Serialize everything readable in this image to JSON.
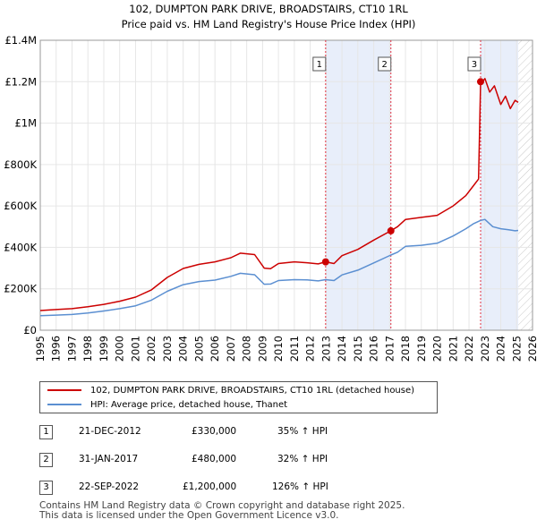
{
  "header": {
    "title": "102, DUMPTON PARK DRIVE, BROADSTAIRS, CT10 1RL",
    "subtitle": "Price paid vs. HM Land Registry's House Price Index (HPI)"
  },
  "chart_data": {
    "type": "line",
    "title": "102, DUMPTON PARK DRIVE, BROADSTAIRS, CT10 1RL",
    "subtitle": "Price paid vs. HM Land Registry's House Price Index (HPI)",
    "xlim": [
      1995,
      2026
    ],
    "ylim": [
      0,
      1400000
    ],
    "x_ticks": [
      1995,
      1996,
      1997,
      1998,
      1999,
      2000,
      2001,
      2002,
      2003,
      2004,
      2005,
      2006,
      2007,
      2008,
      2009,
      2010,
      2011,
      2012,
      2013,
      2014,
      2015,
      2016,
      2017,
      2018,
      2019,
      2020,
      2021,
      2022,
      2023,
      2024,
      2025,
      2026
    ],
    "y_ticks": [
      0,
      200000,
      400000,
      600000,
      800000,
      1000000,
      1200000,
      1400000
    ],
    "y_tick_labels": [
      "£0",
      "£200K",
      "£400K",
      "£600K",
      "£800K",
      "£1M",
      "£1.2M",
      "£1.4M"
    ],
    "grid": true,
    "colors": {
      "property": "#cc0000",
      "hpi": "#5b8fd1",
      "shade": "#e8eefa",
      "marker_line": "#e03040"
    },
    "series": [
      {
        "name": "102, DUMPTON PARK DRIVE, BROADSTAIRS, CT10 1RL (detached house)",
        "x": [
          1995.0,
          1996.0,
          1997.0,
          1998.0,
          1999.0,
          2000.0,
          2001.0,
          2002.0,
          2003.0,
          2004.0,
          2005.0,
          2006.0,
          2007.0,
          2007.6,
          2008.5,
          2009.1,
          2009.5,
          2010.0,
          2011.0,
          2011.8,
          2012.5,
          2012.97,
          2013.5,
          2014.0,
          2015.0,
          2016.0,
          2017.08,
          2017.5,
          2018.0,
          2019.0,
          2020.0,
          2021.0,
          2021.8,
          2022.3,
          2022.6,
          2022.73,
          2022.8,
          2023.0,
          2023.3,
          2023.6,
          2024.0,
          2024.3,
          2024.6,
          2024.9,
          2025.1
        ],
        "values": [
          95000,
          100000,
          104000,
          113000,
          125000,
          140000,
          160000,
          195000,
          255000,
          298000,
          318000,
          330000,
          350000,
          372000,
          365000,
          300000,
          297000,
          322000,
          330000,
          326000,
          320000,
          330000,
          322000,
          360000,
          390000,
          435000,
          480000,
          500000,
          535000,
          545000,
          555000,
          600000,
          650000,
          700000,
          730000,
          1200000,
          1195000,
          1215000,
          1150000,
          1180000,
          1090000,
          1130000,
          1070000,
          1110000,
          1100000
        ],
        "color": "#cc0000"
      },
      {
        "name": "HPI: Average price, detached house, Thanet",
        "x": [
          1995.0,
          1996.0,
          1997.0,
          1998.0,
          1999.0,
          2000.0,
          2001.0,
          2002.0,
          2003.0,
          2004.0,
          2005.0,
          2006.0,
          2007.0,
          2007.6,
          2008.5,
          2009.1,
          2009.5,
          2010.0,
          2011.0,
          2011.8,
          2012.5,
          2012.97,
          2013.5,
          2014.0,
          2015.0,
          2016.0,
          2017.08,
          2017.5,
          2018.0,
          2019.0,
          2020.0,
          2021.0,
          2021.8,
          2022.3,
          2022.73,
          2023.0,
          2023.5,
          2024.0,
          2024.5,
          2024.9,
          2025.1
        ],
        "values": [
          70000,
          73000,
          76000,
          83000,
          93000,
          104000,
          118000,
          145000,
          188000,
          220000,
          235000,
          242000,
          260000,
          275000,
          268000,
          222000,
          223000,
          240000,
          244000,
          243000,
          238000,
          244000,
          240000,
          267000,
          290000,
          325000,
          363000,
          377000,
          405000,
          410000,
          420000,
          455000,
          490000,
          515000,
          530000,
          535000,
          500000,
          490000,
          485000,
          480000,
          482000
        ],
        "color": "#5b8fd1"
      }
    ],
    "sales": [
      {
        "label": "1",
        "x": 2012.97,
        "value": 330000
      },
      {
        "label": "2",
        "x": 2017.08,
        "value": 480000
      },
      {
        "label": "3",
        "x": 2022.73,
        "value": 1200000
      }
    ]
  },
  "legend": {
    "property_label": "102, DUMPTON PARK DRIVE, BROADSTAIRS, CT10 1RL (detached house)",
    "hpi_label": "HPI: Average price, detached house, Thanet"
  },
  "transactions": [
    {
      "num": "1",
      "date": "21-DEC-2012",
      "price": "£330,000",
      "hpi": "35% ↑ HPI"
    },
    {
      "num": "2",
      "date": "31-JAN-2017",
      "price": "£480,000",
      "hpi": "32% ↑ HPI"
    },
    {
      "num": "3",
      "date": "22-SEP-2022",
      "price": "£1,200,000",
      "hpi": "126% ↑ HPI"
    }
  ],
  "footer": {
    "line1": "Contains HM Land Registry data © Crown copyright and database right 2025.",
    "line2": "This data is licensed under the Open Government Licence v3.0."
  }
}
